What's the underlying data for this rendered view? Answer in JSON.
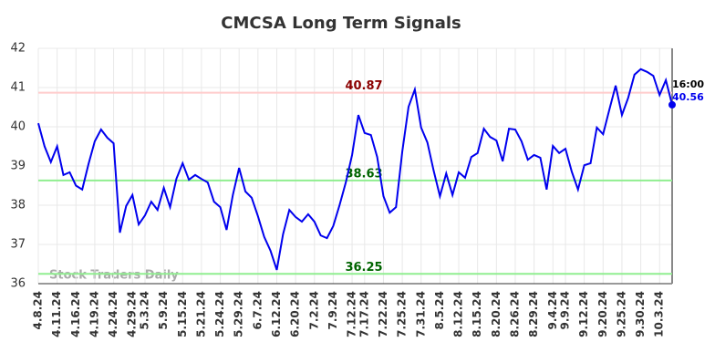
{
  "chart_data": {
    "type": "line",
    "title": "CMCSA Long Term Signals",
    "watermark": "Stock Traders Daily",
    "categories": [
      "4.8.24",
      null,
      null,
      "4.11.24",
      null,
      null,
      "4.16.24",
      null,
      null,
      "4.19.24",
      null,
      null,
      "4.24.24",
      null,
      null,
      "4.29.24",
      null,
      "5.3.24",
      null,
      null,
      "5.9.24",
      null,
      null,
      "5.15.24",
      null,
      null,
      "5.21.24",
      null,
      null,
      "5.24.24",
      null,
      null,
      "5.29.24",
      null,
      null,
      "6.7.24",
      null,
      null,
      "6.12.24",
      null,
      null,
      "6.20.24",
      null,
      null,
      "7.2.24",
      null,
      null,
      "7.9.24",
      null,
      null,
      "7.12.24",
      null,
      "7.17.24",
      null,
      null,
      "7.22.24",
      null,
      null,
      "7.25.24",
      null,
      null,
      "7.31.24",
      null,
      null,
      "8.5.24",
      null,
      null,
      "8.12.24",
      null,
      null,
      "8.15.24",
      null,
      null,
      "8.20.24",
      null,
      null,
      "8.26.24",
      null,
      null,
      "8.29.24",
      null,
      null,
      "9.4.24",
      null,
      "9.9.24",
      null,
      null,
      "9.12.24",
      null,
      null,
      "9.20.24",
      null,
      null,
      "9.25.24",
      null,
      null,
      "9.30.24",
      null,
      null,
      "10.3.24",
      null,
      null
    ],
    "values": [
      40.09,
      39.5,
      39.1,
      39.5,
      38.77,
      38.84,
      38.5,
      38.4,
      39.05,
      39.63,
      39.93,
      39.72,
      39.58,
      37.3,
      37.98,
      38.26,
      37.51,
      37.74,
      38.09,
      37.88,
      38.44,
      37.95,
      38.67,
      39.07,
      38.65,
      38.77,
      38.67,
      38.58,
      38.09,
      37.95,
      37.37,
      38.26,
      38.95,
      38.35,
      38.19,
      37.72,
      37.19,
      36.84,
      36.35,
      37.26,
      37.88,
      37.7,
      37.58,
      37.77,
      37.58,
      37.23,
      37.16,
      37.47,
      38.0,
      38.58,
      39.28,
      40.3,
      39.84,
      39.79,
      39.23,
      38.23,
      37.81,
      37.95,
      39.37,
      40.51,
      40.95,
      39.98,
      39.6,
      38.88,
      38.23,
      38.81,
      38.26,
      38.84,
      38.7,
      39.23,
      39.33,
      39.95,
      39.74,
      39.65,
      39.12,
      39.95,
      39.93,
      39.63,
      39.16,
      39.28,
      39.21,
      38.4,
      39.51,
      39.33,
      39.44,
      38.86,
      38.4,
      39.02,
      39.07,
      39.98,
      39.81,
      40.44,
      41.05,
      40.3,
      40.74,
      41.33,
      41.47,
      41.4,
      41.3,
      40.81,
      41.19,
      40.56
    ],
    "color": "#0000ee",
    "last_time": "16:00",
    "levels": [
      {
        "value": 40.87,
        "color": "#ffcccc",
        "text_color": "#8b0000"
      },
      {
        "value": 38.63,
        "color": "#90ee90",
        "text_color": "#006400"
      },
      {
        "value": 36.25,
        "color": "#90ee90",
        "text_color": "#006400"
      }
    ],
    "ylim": [
      36,
      42
    ],
    "yticks": [
      36,
      37,
      38,
      39,
      40,
      41,
      42
    ],
    "grid": true
  }
}
